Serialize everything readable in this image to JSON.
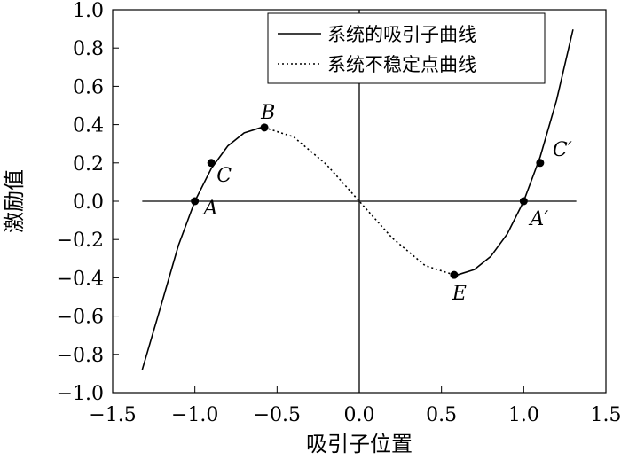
{
  "chart_data": {
    "type": "line",
    "xlabel": "吸引子位置",
    "ylabel": "激励值",
    "xlim": [
      -1.5,
      1.5
    ],
    "ylim": [
      -1.0,
      1.0
    ],
    "x_ticks": [
      "−1.5",
      "−1.0",
      "−0.5",
      "0.0",
      "0.5",
      "1.0",
      "1.5"
    ],
    "x_tick_values": [
      -1.5,
      -1.0,
      -0.5,
      0.0,
      0.5,
      1.0,
      1.5
    ],
    "y_ticks": [
      "1.0",
      "0.8",
      "0.6",
      "0.4",
      "0.2",
      "0.0",
      "−0.2",
      "−0.4",
      "−0.6",
      "−0.8",
      "−1.0"
    ],
    "y_tick_values": [
      1.0,
      0.8,
      0.6,
      0.4,
      0.2,
      0.0,
      -0.2,
      -0.4,
      -0.6,
      -0.8,
      -1.0
    ],
    "series": [
      {
        "name": "系统的吸引子曲线",
        "style": "solid",
        "segments": [
          {
            "x": [
              -1.32,
              -1.2,
              -1.1,
              -1.0,
              -0.9,
              -0.8,
              -0.7,
              -0.6,
              -0.577
            ],
            "y": [
              -0.88,
              -0.528,
              -0.231,
              0.0,
              0.171,
              0.288,
              0.357,
              0.384,
              0.385
            ]
          },
          {
            "x": [
              0.577,
              0.6,
              0.7,
              0.8,
              0.9,
              1.0,
              1.1,
              1.2,
              1.3
            ],
            "y": [
              -0.385,
              -0.384,
              -0.357,
              -0.288,
              -0.171,
              0.0,
              0.231,
              0.528,
              0.897
            ]
          }
        ]
      },
      {
        "name": "系统不稳定点曲线",
        "style": "dotted",
        "segments": [
          {
            "x": [
              -0.577,
              -0.4,
              -0.2,
              0.0,
              0.2,
              0.4,
              0.577
            ],
            "y": [
              0.385,
              0.336,
              0.192,
              0.0,
              -0.192,
              -0.336,
              -0.385
            ]
          }
        ]
      }
    ],
    "points": [
      {
        "label": "A",
        "x": -1.0,
        "y": 0.0
      },
      {
        "label": "C",
        "x": -0.9,
        "y": 0.2
      },
      {
        "label": "B",
        "x": -0.577,
        "y": 0.385
      },
      {
        "label": "E",
        "x": 0.577,
        "y": -0.385
      },
      {
        "label": "A′",
        "x": 1.0,
        "y": 0.0
      },
      {
        "label": "C′",
        "x": 1.1,
        "y": 0.2
      }
    ],
    "reference_lines": {
      "horizontal_y": 0.0,
      "vertical_x": 0.0
    },
    "grid": false,
    "legend_position": "top-right"
  },
  "colors": {
    "line": "#000000",
    "background": "#ffffff"
  }
}
